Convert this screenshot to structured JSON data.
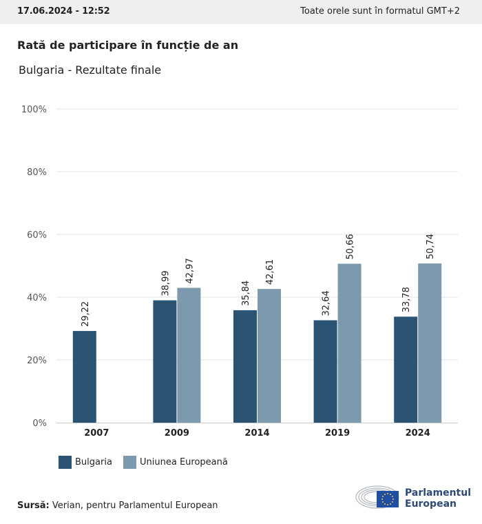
{
  "header": {
    "timestamp": "17.06.2024 - 12:52",
    "timezone_note": "Toate orele sunt în formatul GMT+2"
  },
  "title": "Rată de participare în funcție de an",
  "subtitle": "Bulgaria - Rezultate finale",
  "colors": {
    "bulgaria": "#2b5373",
    "eu": "#7d99ad",
    "grid": "#e3e3e3",
    "axis": "#c9c9c9"
  },
  "chart_data": {
    "type": "bar",
    "categories": [
      "2007",
      "2009",
      "2014",
      "2019",
      "2024"
    ],
    "series": [
      {
        "name": "Bulgaria",
        "values": [
          29.22,
          38.99,
          35.84,
          32.64,
          33.78
        ],
        "labels": [
          "29,22",
          "38,99",
          "35,84",
          "32,64",
          "33,78"
        ]
      },
      {
        "name": "Uniunea Europeană",
        "values": [
          null,
          42.97,
          42.61,
          50.66,
          50.74
        ],
        "labels": [
          "",
          "42,97",
          "42,61",
          "50,66",
          "50,74"
        ]
      }
    ],
    "yticks": [
      "0%",
      "20%",
      "40%",
      "60%",
      "80%",
      "100%"
    ],
    "ylim": [
      0,
      100
    ],
    "grid": true,
    "legend_position": "bottom-left"
  },
  "legend": {
    "items": [
      "Bulgaria",
      "Uniunea Europeană"
    ]
  },
  "source": {
    "label": "Sursă:",
    "text": "Verian, pentru Parlamentul European"
  },
  "logo": {
    "line1": "Parlamentul",
    "line2": "European",
    "icon": "european-parliament-emblem-icon"
  }
}
